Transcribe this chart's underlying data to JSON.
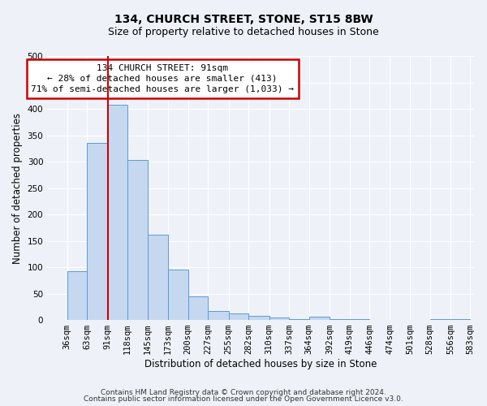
{
  "title": "134, CHURCH STREET, STONE, ST15 8BW",
  "subtitle": "Size of property relative to detached houses in Stone",
  "xlabel": "Distribution of detached houses by size in Stone",
  "ylabel": "Number of detached properties",
  "bar_left_edges": [
    36,
    63,
    91,
    118,
    145,
    173,
    200,
    227,
    255,
    282,
    310,
    337,
    364,
    392,
    419,
    446,
    474,
    501,
    528,
    556
  ],
  "bar_heights": [
    93,
    336,
    408,
    303,
    161,
    95,
    44,
    17,
    12,
    8,
    5,
    1,
    6,
    1,
    1,
    0,
    0,
    0,
    2,
    2
  ],
  "bar_widths": [
    27,
    28,
    27,
    27,
    28,
    27,
    27,
    28,
    27,
    28,
    27,
    27,
    28,
    27,
    27,
    28,
    27,
    27,
    28,
    27
  ],
  "bar_color": "#c5d8f0",
  "bar_edge_color": "#5b9bd5",
  "marker_x": 91,
  "marker_color": "#cc0000",
  "ylim": [
    0,
    500
  ],
  "yticks": [
    0,
    50,
    100,
    150,
    200,
    250,
    300,
    350,
    400,
    450,
    500
  ],
  "xtick_labels": [
    "36sqm",
    "63sqm",
    "91sqm",
    "118sqm",
    "145sqm",
    "173sqm",
    "200sqm",
    "227sqm",
    "255sqm",
    "282sqm",
    "310sqm",
    "337sqm",
    "364sqm",
    "392sqm",
    "419sqm",
    "446sqm",
    "474sqm",
    "501sqm",
    "528sqm",
    "556sqm",
    "583sqm"
  ],
  "xtick_positions": [
    36,
    63,
    91,
    118,
    145,
    173,
    200,
    227,
    255,
    282,
    310,
    337,
    364,
    392,
    419,
    446,
    474,
    501,
    528,
    556,
    583
  ],
  "annotation_title": "134 CHURCH STREET: 91sqm",
  "annotation_line1": "← 28% of detached houses are smaller (413)",
  "annotation_line2": "71% of semi-detached houses are larger (1,033) →",
  "annotation_box_color": "#ffffff",
  "annotation_box_edge": "#cc0000",
  "footer1": "Contains HM Land Registry data © Crown copyright and database right 2024.",
  "footer2": "Contains public sector information licensed under the Open Government Licence v3.0.",
  "bg_color": "#eef2f8",
  "plot_bg_color": "#eef2f8",
  "grid_color": "#ffffff",
  "title_fontsize": 10,
  "subtitle_fontsize": 9,
  "axis_label_fontsize": 8.5,
  "tick_fontsize": 7.5,
  "annotation_fontsize": 8,
  "footer_fontsize": 6.5
}
